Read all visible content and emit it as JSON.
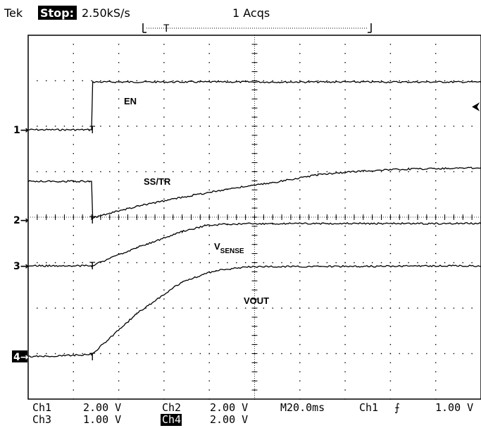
{
  "header": {
    "brand": "Tek",
    "state": "Stop:",
    "sample_rate": "2.50kS/s",
    "acqs": "1 Acqs"
  },
  "trigger_marker": "T",
  "arrow_marker": "⮜",
  "chart_data": {
    "type": "line",
    "x_unit": "ms",
    "x_range": [
      -28,
      172
    ],
    "grid": true,
    "divisions": {
      "x": 10,
      "y": 8
    },
    "series": [
      {
        "name": "EN",
        "channel": "1",
        "points": [
          [
            -28,
            0
          ],
          [
            -1,
            0
          ],
          [
            0,
            0
          ],
          [
            0.5,
            1.05
          ],
          [
            172,
            1.05
          ]
        ]
      },
      {
        "name": "SS/TR",
        "channel": "2",
        "points": [
          [
            -28,
            0.85
          ],
          [
            -1,
            0.85
          ],
          [
            0,
            0.85
          ],
          [
            0.5,
            0.05
          ],
          [
            20,
            0.3
          ],
          [
            40,
            0.5
          ],
          [
            60,
            0.68
          ],
          [
            80,
            0.82
          ],
          [
            100,
            1.0
          ],
          [
            120,
            1.08
          ],
          [
            140,
            1.12
          ],
          [
            172,
            1.15
          ]
        ]
      },
      {
        "name": "VSENSE",
        "label_main": "V",
        "label_sub": "SENSE",
        "channel": "3",
        "points": [
          [
            -28,
            0
          ],
          [
            0,
            0
          ],
          [
            20,
            0.4
          ],
          [
            40,
            0.75
          ],
          [
            50,
            0.88
          ],
          [
            60,
            0.92
          ],
          [
            80,
            0.93
          ],
          [
            172,
            0.93
          ]
        ]
      },
      {
        "name": "VOUT",
        "channel": "4",
        "points": [
          [
            -28,
            0
          ],
          [
            0,
            0.05
          ],
          [
            20,
            0.95
          ],
          [
            40,
            1.65
          ],
          [
            55,
            1.9
          ],
          [
            70,
            1.98
          ],
          [
            172,
            2.0
          ]
        ]
      }
    ]
  },
  "footer": {
    "ch1": "Ch1",
    "ch1_scale": "2.00 V",
    "ch2": "Ch2",
    "ch2_scale": "2.00 V",
    "timebase": "M20.0ms",
    "trig_src": "Ch1",
    "trig_slope": "⨍",
    "trig_level": "1.00 V",
    "ch3": "Ch3",
    "ch3_scale": "1.00 V",
    "ch4": "Ch4",
    "ch4_scale": "2.00 V"
  },
  "channel_markers": [
    "1",
    "2",
    "3",
    "4"
  ]
}
